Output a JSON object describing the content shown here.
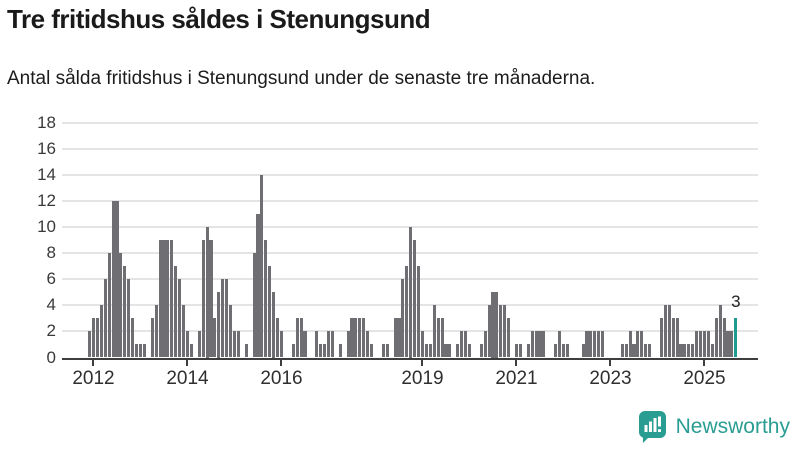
{
  "header": {
    "title": "Tre fritidshus såldes i Stenungsund",
    "subtitle": "Antal sålda fritidshus i Stenungsund under de senaste tre månaderna."
  },
  "chart_data": {
    "type": "bar",
    "title": "Tre fritidshus såldes i Stenungsund",
    "x_unit": "month",
    "start_month": "2011-12",
    "end_month": "2025-09",
    "values": [
      2,
      3,
      3,
      4,
      6,
      8,
      12,
      12,
      8,
      7,
      6,
      3,
      1,
      1,
      1,
      0,
      3,
      4,
      9,
      9,
      9,
      9,
      7,
      6,
      4,
      2,
      1,
      0,
      2,
      9,
      10,
      9,
      3,
      5,
      6,
      6,
      4,
      2,
      2,
      0,
      1,
      0,
      8,
      11,
      14,
      9,
      7,
      5,
      3,
      2,
      0,
      0,
      1,
      3,
      3,
      2,
      0,
      0,
      2,
      1,
      1,
      2,
      2,
      0,
      1,
      0,
      2,
      3,
      3,
      3,
      3,
      2,
      1,
      0,
      0,
      1,
      1,
      0,
      3,
      3,
      6,
      7,
      10,
      9,
      7,
      2,
      1,
      1,
      4,
      3,
      3,
      1,
      1,
      0,
      1,
      2,
      2,
      1,
      0,
      0,
      1,
      2,
      4,
      5,
      5,
      4,
      4,
      3,
      0,
      1,
      1,
      0,
      1,
      2,
      2,
      2,
      2,
      0,
      0,
      1,
      2,
      1,
      1,
      0,
      0,
      0,
      1,
      2,
      2,
      2,
      2,
      2,
      0,
      0,
      0,
      0,
      1,
      1,
      2,
      1,
      2,
      2,
      1,
      1,
      0,
      0,
      3,
      4,
      4,
      3,
      3,
      1,
      1,
      1,
      1,
      2,
      2,
      2,
      2,
      1,
      3,
      4,
      3,
      2,
      2,
      3
    ],
    "highlight_index": 165,
    "annotation": "3",
    "y_ticks": [
      0,
      2,
      4,
      6,
      8,
      10,
      12,
      14,
      16,
      18
    ],
    "ylim": [
      0,
      18
    ],
    "grid": true,
    "x_ticks": [
      {
        "label": "2012",
        "month_index": 1
      },
      {
        "label": "2014",
        "month_index": 25
      },
      {
        "label": "2016",
        "month_index": 49
      },
      {
        "label": "2019",
        "month_index": 85
      },
      {
        "label": "2021",
        "month_index": 109
      },
      {
        "label": "2023",
        "month_index": 133
      },
      {
        "label": "2025",
        "month_index": 157
      }
    ],
    "colors": {
      "bar": "#6e6e73",
      "highlight": "#1d9c8f",
      "grid": "#e4e4e4",
      "axis": "#3e3e3e"
    }
  },
  "footer": {
    "brand": "Newsworthy",
    "brand_color": "#2a9d92"
  }
}
